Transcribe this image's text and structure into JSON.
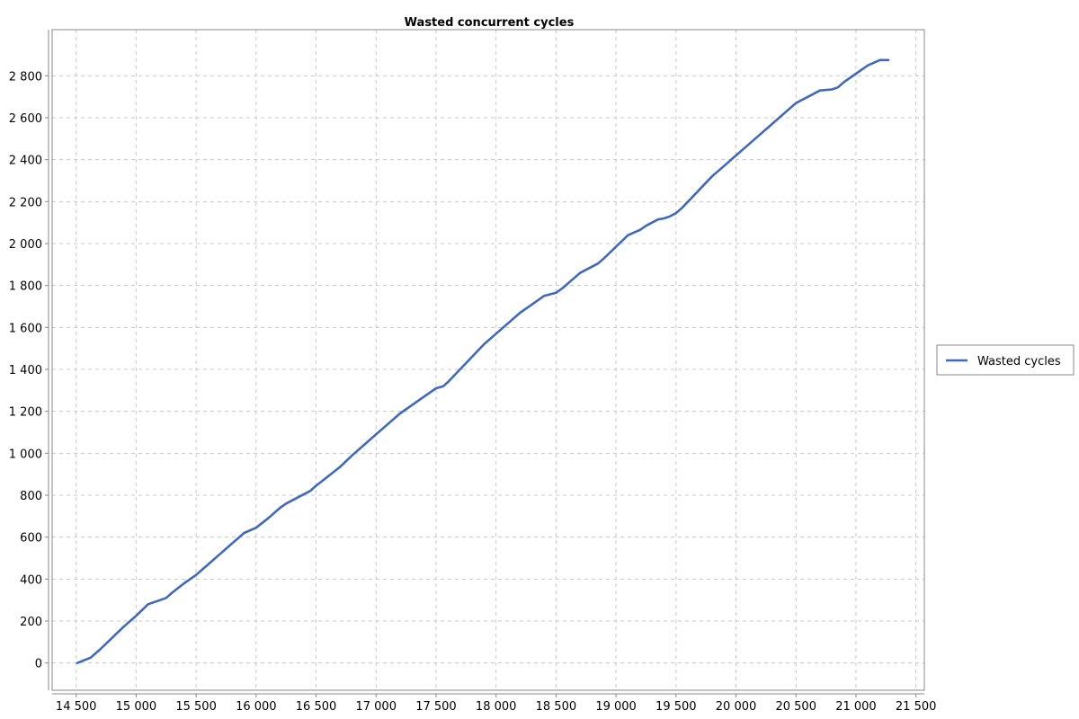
{
  "chart_data": {
    "type": "line",
    "title": "Wasted concurrent cycles",
    "xlabel": "",
    "ylabel": "",
    "xlim": [
      14300,
      21570
    ],
    "ylim": [
      -130,
      3020
    ],
    "x_ticks": [
      14500,
      15000,
      15500,
      16000,
      16500,
      17000,
      17500,
      18000,
      18500,
      19000,
      19500,
      20000,
      20500,
      21000,
      21500
    ],
    "x_tick_labels": [
      "14 500",
      "15 000",
      "15 500",
      "16 000",
      "16 500",
      "17 000",
      "17 500",
      "18 000",
      "18 500",
      "19 000",
      "19 500",
      "20 000",
      "20 500",
      "21 000",
      "21 500"
    ],
    "y_ticks": [
      0,
      200,
      400,
      600,
      800,
      1000,
      1200,
      1400,
      1600,
      1800,
      2000,
      2200,
      2400,
      2600,
      2800
    ],
    "y_tick_labels": [
      "0",
      "200",
      "400",
      "600",
      "800",
      "1 000",
      "1 200",
      "1 400",
      "1 600",
      "1 800",
      "2 000",
      "2 200",
      "2 400",
      "2 600",
      "2 800"
    ],
    "grid": true,
    "legend_position": "right",
    "series": [
      {
        "name": "Wasted cycles",
        "color": "#4169b9",
        "x": [
          14510,
          14560,
          14620,
          14700,
          14800,
          14900,
          15000,
          15100,
          15150,
          15200,
          15250,
          15300,
          15400,
          15500,
          15600,
          15700,
          15800,
          15900,
          16000,
          16100,
          16200,
          16250,
          16350,
          16450,
          16500,
          16600,
          16700,
          16800,
          16900,
          17000,
          17100,
          17200,
          17300,
          17400,
          17500,
          17560,
          17600,
          17700,
          17800,
          17900,
          18000,
          18100,
          18200,
          18300,
          18400,
          18500,
          18560,
          18600,
          18700,
          18800,
          18850,
          18900,
          19000,
          19100,
          19200,
          19250,
          19300,
          19350,
          19400,
          19450,
          19500,
          19550,
          19600,
          19700,
          19800,
          19900,
          20000,
          20100,
          20200,
          20300,
          20400,
          20500,
          20600,
          20700,
          20800,
          20850,
          20900,
          21000,
          21050,
          21100,
          21200,
          21250,
          21270
        ],
        "y": [
          0,
          12,
          25,
          65,
          120,
          175,
          225,
          280,
          290,
          300,
          310,
          335,
          380,
          420,
          470,
          520,
          570,
          620,
          645,
          690,
          740,
          760,
          790,
          820,
          845,
          890,
          935,
          990,
          1040,
          1090,
          1140,
          1190,
          1230,
          1270,
          1310,
          1320,
          1340,
          1400,
          1460,
          1520,
          1570,
          1620,
          1670,
          1710,
          1750,
          1765,
          1790,
          1810,
          1860,
          1890,
          1905,
          1930,
          1985,
          2040,
          2065,
          2085,
          2100,
          2115,
          2120,
          2130,
          2145,
          2170,
          2200,
          2260,
          2320,
          2370,
          2420,
          2470,
          2520,
          2570,
          2620,
          2670,
          2700,
          2730,
          2735,
          2745,
          2770,
          2810,
          2830,
          2850,
          2875,
          2875,
          2875
        ]
      }
    ]
  }
}
